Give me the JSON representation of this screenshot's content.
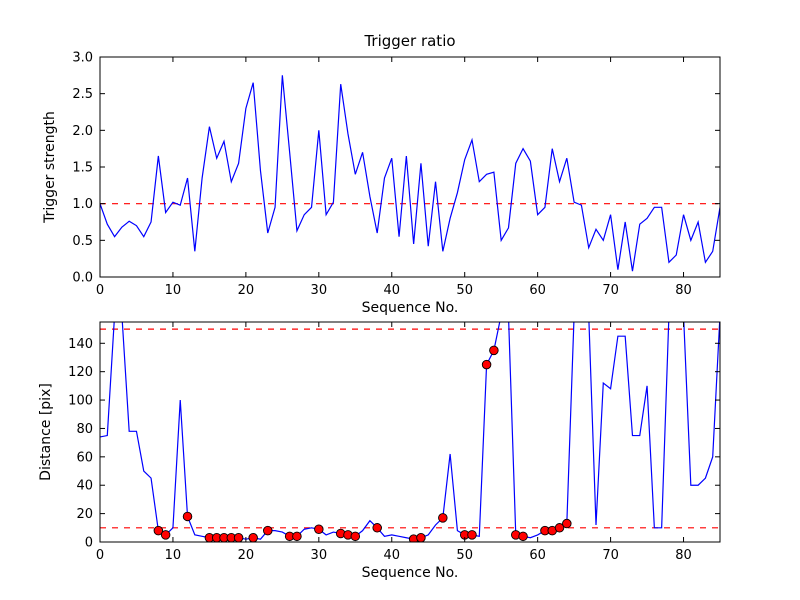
{
  "figure": {
    "background_color": "#ffffff",
    "line_color": "#0000ff",
    "threshold_color": "#ff0000",
    "marker_face_color": "#ff0000",
    "marker_edge_color": "#000000",
    "axes_color": "#000000"
  },
  "chart_data": [
    {
      "type": "line",
      "title": "Trigger ratio",
      "xlabel": "Sequence No.",
      "ylabel": "Trigger strength",
      "xlim": [
        0,
        85
      ],
      "ylim": [
        0.0,
        3.0
      ],
      "xticks": {
        "values": [
          0,
          10,
          20,
          30,
          40,
          50,
          60,
          70,
          80
        ],
        "labels": [
          "0",
          "10",
          "20",
          "30",
          "40",
          "50",
          "60",
          "70",
          "80"
        ]
      },
      "yticks": {
        "values": [
          0.0,
          0.5,
          1.0,
          1.5,
          2.0,
          2.5,
          3.0
        ],
        "labels": [
          "0.0",
          "0.5",
          "1.0",
          "1.5",
          "2.0",
          "2.5",
          "3.0"
        ]
      },
      "grid": false,
      "legend": null,
      "line_color": "#0000ff",
      "threshold_color": "#ff0000",
      "thresholds": [
        1.0
      ],
      "x": [
        0,
        1,
        2,
        3,
        4,
        5,
        6,
        7,
        8,
        9,
        10,
        11,
        12,
        13,
        14,
        15,
        16,
        17,
        18,
        19,
        20,
        21,
        22,
        23,
        24,
        25,
        26,
        27,
        28,
        29,
        30,
        31,
        32,
        33,
        34,
        35,
        36,
        37,
        38,
        39,
        40,
        41,
        42,
        43,
        44,
        45,
        46,
        47,
        48,
        49,
        50,
        51,
        52,
        53,
        54,
        55,
        56,
        57,
        58,
        59,
        60,
        61,
        62,
        63,
        64,
        65,
        66,
        67,
        68,
        69,
        70,
        71,
        72,
        73,
        74,
        75,
        76,
        77,
        78,
        79,
        80,
        81,
        82,
        83,
        84,
        85
      ],
      "y": [
        1.0,
        0.72,
        0.55,
        0.68,
        0.76,
        0.7,
        0.55,
        0.75,
        1.65,
        0.88,
        1.02,
        0.98,
        1.35,
        0.35,
        1.35,
        2.05,
        1.62,
        1.85,
        1.3,
        1.55,
        2.3,
        2.65,
        1.45,
        0.6,
        0.95,
        2.75,
        1.7,
        0.63,
        0.85,
        0.95,
        2.0,
        0.85,
        1.02,
        2.63,
        1.95,
        1.4,
        1.7,
        1.1,
        0.6,
        1.35,
        1.62,
        0.55,
        1.65,
        0.45,
        1.55,
        0.42,
        1.3,
        0.35,
        0.8,
        1.15,
        1.6,
        1.87,
        1.3,
        1.4,
        1.43,
        0.5,
        0.67,
        1.55,
        1.75,
        1.58,
        0.85,
        0.95,
        1.75,
        1.3,
        1.62,
        1.02,
        0.98,
        0.4,
        0.65,
        0.5,
        0.85,
        0.1,
        0.75,
        0.08,
        0.72,
        0.8,
        0.95,
        0.95,
        0.2,
        0.3,
        0.85,
        0.5,
        0.75,
        0.2,
        0.35,
        0.95
      ],
      "markers": {
        "x": [],
        "y": []
      }
    },
    {
      "type": "line",
      "title": "",
      "xlabel": "Sequence No.",
      "ylabel": "Distance [pix]",
      "xlim": [
        0,
        85
      ],
      "ylim": [
        0,
        155
      ],
      "xticks": {
        "values": [
          0,
          10,
          20,
          30,
          40,
          50,
          60,
          70,
          80
        ],
        "labels": [
          "0",
          "10",
          "20",
          "30",
          "40",
          "50",
          "60",
          "70",
          "80"
        ]
      },
      "yticks": {
        "values": [
          0,
          20,
          40,
          60,
          80,
          100,
          120,
          140
        ],
        "labels": [
          "0",
          "20",
          "40",
          "60",
          "80",
          "100",
          "120",
          "140"
        ]
      },
      "grid": false,
      "legend": null,
      "line_color": "#0000ff",
      "threshold_color": "#ff0000",
      "thresholds": [
        150,
        10
      ],
      "x": [
        0,
        1,
        2,
        3,
        4,
        5,
        6,
        7,
        8,
        9,
        10,
        11,
        12,
        13,
        14,
        15,
        16,
        17,
        18,
        19,
        20,
        21,
        22,
        23,
        24,
        25,
        26,
        27,
        28,
        29,
        30,
        31,
        32,
        33,
        34,
        35,
        36,
        37,
        38,
        39,
        40,
        41,
        42,
        43,
        44,
        45,
        46,
        47,
        48,
        49,
        50,
        51,
        52,
        53,
        54,
        55,
        56,
        57,
        58,
        59,
        60,
        61,
        62,
        63,
        64,
        65,
        66,
        67,
        68,
        69,
        70,
        71,
        72,
        73,
        74,
        75,
        76,
        77,
        78,
        79,
        80,
        81,
        82,
        83,
        84,
        85
      ],
      "y": [
        74,
        75,
        160,
        160,
        78,
        78,
        50,
        45,
        8,
        5,
        10,
        100,
        18,
        5,
        4,
        3,
        3,
        3,
        3,
        3,
        2,
        3,
        2,
        8,
        8,
        7,
        4,
        4,
        9,
        10,
        9,
        5,
        7,
        6,
        5,
        4,
        8,
        15,
        10,
        4,
        5,
        4,
        3,
        2,
        3,
        5,
        12,
        17,
        62,
        8,
        5,
        5,
        4,
        125,
        135,
        160,
        160,
        5,
        4,
        3,
        5,
        8,
        8,
        10,
        13,
        160,
        160,
        160,
        12,
        112,
        108,
        145,
        145,
        75,
        75,
        110,
        10,
        10,
        160,
        160,
        160,
        40,
        40,
        45,
        60,
        160
      ],
      "markers": {
        "x": [
          8,
          9,
          12,
          15,
          16,
          17,
          18,
          19,
          21,
          23,
          26,
          27,
          30,
          33,
          34,
          35,
          38,
          43,
          44,
          47,
          50,
          51,
          53,
          54,
          57,
          58,
          61,
          62,
          63,
          64
        ],
        "y": [
          8,
          5,
          18,
          3,
          3,
          3,
          3,
          3,
          3,
          8,
          4,
          4,
          9,
          6,
          5,
          4,
          10,
          2,
          3,
          17,
          5,
          5,
          125,
          135,
          5,
          4,
          8,
          8,
          10,
          13
        ]
      }
    }
  ]
}
